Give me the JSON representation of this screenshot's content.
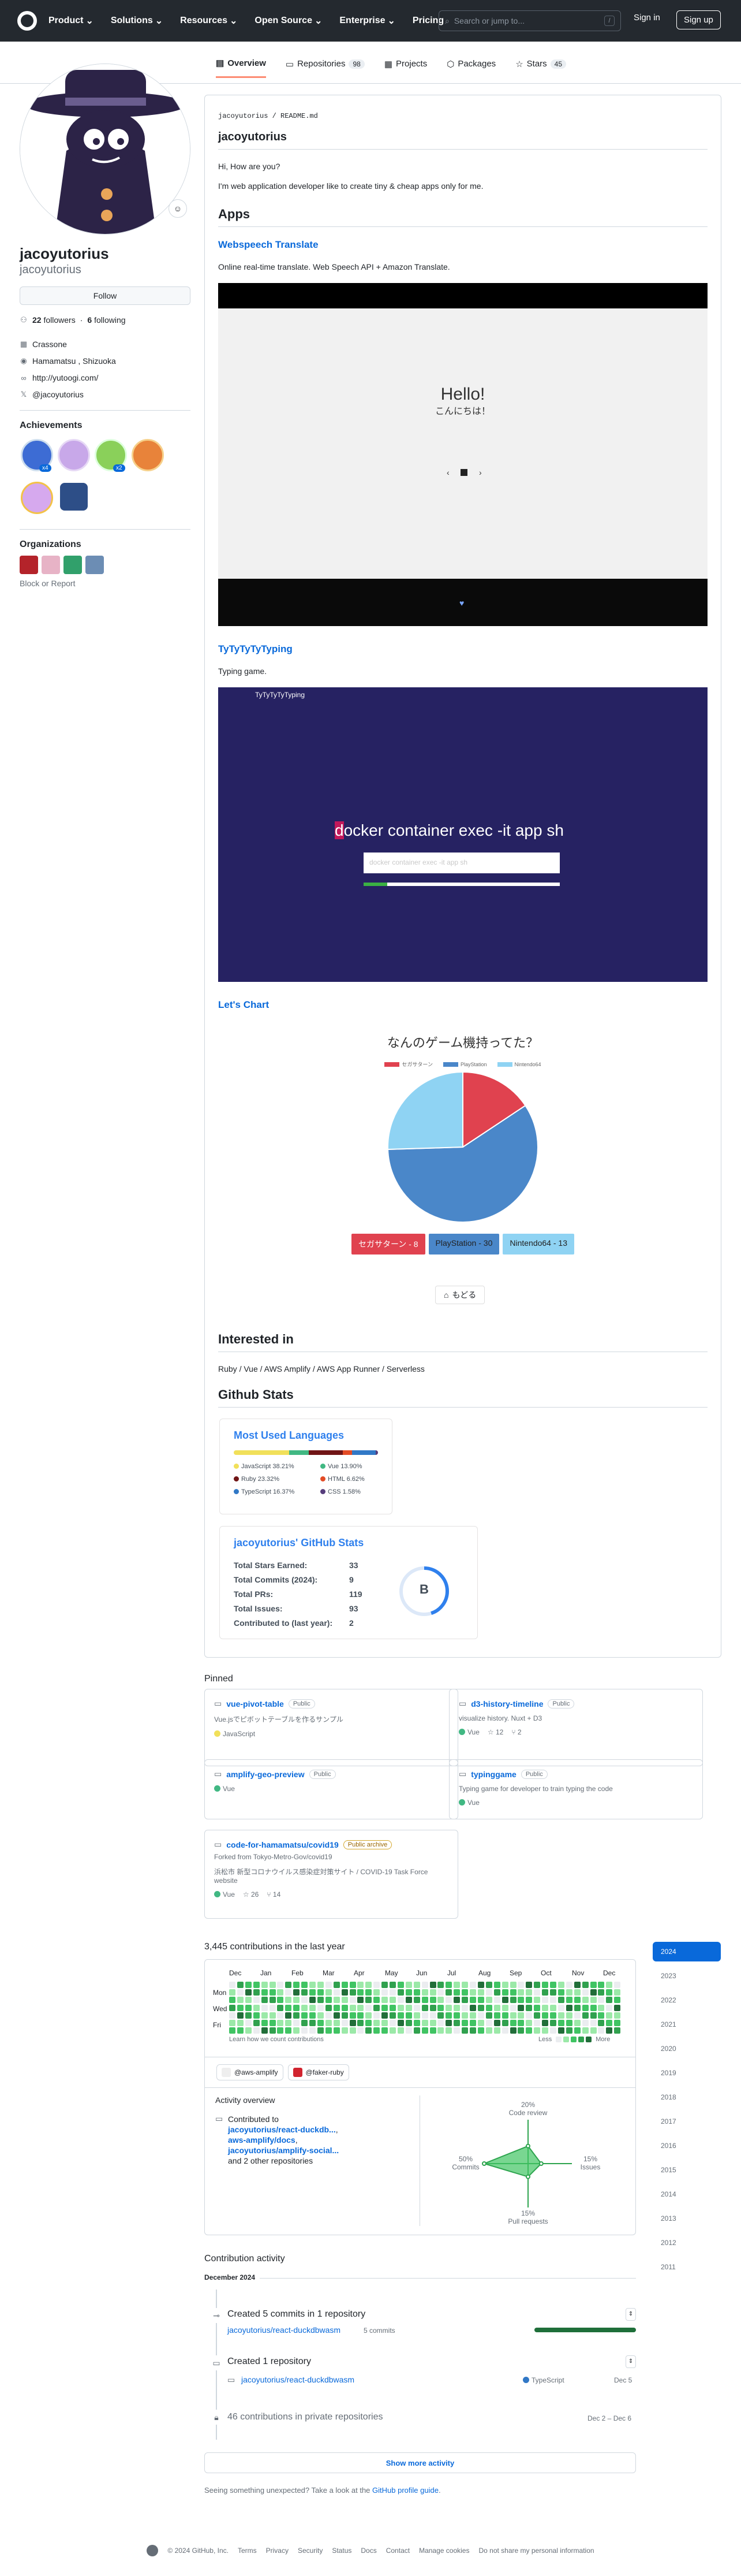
{
  "header": {
    "nav": [
      "Product",
      "Solutions",
      "Resources",
      "Open Source",
      "Enterprise",
      "Pricing"
    ],
    "search_placeholder": "Search or jump to...",
    "search_kbd": "/",
    "sign_in": "Sign in",
    "sign_up": "Sign up"
  },
  "tabs": [
    {
      "label": "Overview",
      "count": ""
    },
    {
      "label": "Repositories",
      "count": "98"
    },
    {
      "label": "Projects",
      "count": ""
    },
    {
      "label": "Packages",
      "count": ""
    },
    {
      "label": "Stars",
      "count": "45"
    }
  ],
  "profile": {
    "name": "jacoyutorius",
    "login": "jacoyutorius",
    "follow_label": "Follow",
    "followers_count": "22",
    "followers_label": "followers",
    "following_count": "6",
    "following_label": "following",
    "company": "Crassone",
    "location": "Hamamatsu , Shizuoka",
    "website": "http://yutoogi.com/",
    "twitter": "@jacoyutorius",
    "achievements_title": "Achievements",
    "badge_x4": "x4",
    "badge_x2": "x2",
    "organizations_title": "Organizations",
    "block_report": "Block or Report"
  },
  "readme": {
    "path": "jacoyutorius / README.md",
    "title": "jacoyutorius",
    "greeting": "Hi, How are you?",
    "intro": "I'm web application developer like to create tiny & cheap apps only for me.",
    "apps_title": "Apps",
    "app1_title": "Webspeech Translate",
    "app1_desc": "Online real-time translate. Web Speech API + Amazon Translate.",
    "app1_hello": "Hello!",
    "app1_hello_ja": "こんにちは！",
    "app2_title": "TyTyTyTyTyping",
    "app2_desc": "Typing game.",
    "app2_logo": "TyTyTyTyTyping",
    "app2_text": "ocker container exec -it app sh",
    "app2_text_cursor": "d",
    "app2_input": "docker container exec -it app sh",
    "app3_title": "Let's Chart",
    "back_label": "もどる",
    "interested_title": "Interested in",
    "interested_text": "Ruby / Vue / AWS Amplify / AWS App Runner / Serverless",
    "stats_title": "Github Stats"
  },
  "chart_data": [
    {
      "type": "pie",
      "title": "なんのゲーム機持ってた？",
      "categories": [
        "セガサターン",
        "PlayStation",
        "Nintendo64"
      ],
      "values": [
        8,
        30,
        13
      ],
      "colors": [
        "#e0424f",
        "#4a87c9",
        "#8fd3f3"
      ],
      "legend_position": "top",
      "buttons": [
        "セガサターン - 8",
        "PlayStation - 30",
        "Nintendo64 - 13"
      ]
    },
    {
      "type": "radar",
      "categories": [
        "Code review",
        "Issues",
        "Pull requests",
        "Commits"
      ],
      "values": [
        20,
        15,
        15,
        50
      ],
      "labels": [
        "20%",
        "15%",
        "15%",
        "50%"
      ]
    }
  ],
  "langs": {
    "title": "Most Used Languages",
    "items": [
      {
        "name": "JavaScript",
        "pct": "38.21%",
        "value": 38.21,
        "color": "#f1e05a"
      },
      {
        "name": "Vue",
        "pct": "13.90%",
        "value": 13.9,
        "color": "#41b883"
      },
      {
        "name": "Ruby",
        "pct": "23.32%",
        "value": 23.32,
        "color": "#701516"
      },
      {
        "name": "HTML",
        "pct": "6.62%",
        "value": 6.62,
        "color": "#e34c26"
      },
      {
        "name": "TypeScript",
        "pct": "16.37%",
        "value": 16.37,
        "color": "#3178c6"
      },
      {
        "name": "CSS",
        "pct": "1.58%",
        "value": 1.58,
        "color": "#563d7c"
      }
    ]
  },
  "stats": {
    "title": "jacoyutorius' GitHub Stats",
    "rows": [
      {
        "label": "Total Stars Earned:",
        "value": "33"
      },
      {
        "label": "Total Commits (2024):",
        "value": "9"
      },
      {
        "label": "Total PRs:",
        "value": "119"
      },
      {
        "label": "Total Issues:",
        "value": "93"
      },
      {
        "label": "Contributed to (last year):",
        "value": "2"
      }
    ],
    "rank": "B",
    "rank_progress": 0.45
  },
  "pinned": {
    "title": "Pinned",
    "items": [
      {
        "name": "vue-pivot-table",
        "visibility": "Public",
        "desc": "Vue.jsでピボットテーブルを作るサンプル",
        "lang": "JavaScript",
        "lang_color": "#f1e05a",
        "stars": "",
        "forks": ""
      },
      {
        "name": "d3-history-timeline",
        "visibility": "Public",
        "desc": "visualize history. Nuxt + D3",
        "lang": "Vue",
        "lang_color": "#41b883",
        "stars": "12",
        "forks": "2"
      },
      {
        "name": "amplify-geo-preview",
        "visibility": "Public",
        "desc": "",
        "lang": "Vue",
        "lang_color": "#41b883",
        "stars": "",
        "forks": ""
      },
      {
        "name": "typinggame",
        "visibility": "Public",
        "desc": "Typing game for developer to train typing the code",
        "lang": "Vue",
        "lang_color": "#41b883",
        "stars": "",
        "forks": ""
      },
      {
        "name": "code-for-hamamatsu/covid19",
        "visibility": "Public archive",
        "forked": "Forked from Tokyo-Metro-Gov/covid19",
        "desc": "浜松市 新型コロナウイルス感染症対策サイト / COVID-19 Task Force website",
        "lang": "Vue",
        "lang_color": "#41b883",
        "stars": "26",
        "forks": "14"
      }
    ]
  },
  "contributions": {
    "heading": "3,445 contributions in the last year",
    "months": [
      "Dec",
      "Jan",
      "Feb",
      "Mar",
      "Apr",
      "May",
      "Jun",
      "Jul",
      "Aug",
      "Sep",
      "Oct",
      "Nov",
      "Dec"
    ],
    "days": [
      "Mon",
      "Wed",
      "Fri"
    ],
    "learn": "Learn how we count contributions",
    "less": "Less",
    "more": "More",
    "years": [
      "2024",
      "2023",
      "2022",
      "2021",
      "2020",
      "2019",
      "2018",
      "2017",
      "2016",
      "2015",
      "2014",
      "2013",
      "2012",
      "2011"
    ]
  },
  "overview": {
    "orgs": [
      "@aws-amplify",
      "@faker-ruby"
    ],
    "title": "Activity overview",
    "contributed_to": "Contributed to",
    "repo1": "jacoyutorius/react-duckdb...",
    "repo2": "aws-amplify/docs",
    "repo3": "jacoyutorius/amplify-social...",
    "and_more": "and 2 other repositories",
    "code_review": "Code review",
    "issues": "Issues",
    "pull_requests": "Pull requests",
    "commits": "Commits"
  },
  "activity": {
    "title": "Contribution activity",
    "month": "December 2024",
    "item1": "Created 5 commits in 1 repository",
    "item1_repo": "jacoyutorius/react-duckdbwasm",
    "item1_count": "5 commits",
    "item2": "Created 1 repository",
    "item2_repo": "jacoyutorius/react-duckdbwasm",
    "item2_lang": "TypeScript",
    "item2_date": "Dec 5",
    "item3": "46 contributions in private repositories",
    "item3_date": "Dec 2 – Dec 6",
    "show_more": "Show more activity",
    "unexpected": "Seeing something unexpected? Take a look at the",
    "guide": "GitHub profile guide",
    "period": "."
  },
  "footer": {
    "copyright": "© 2024 GitHub, Inc.",
    "links": [
      "Terms",
      "Privacy",
      "Security",
      "Status",
      "Docs",
      "Contact",
      "Manage cookies",
      "Do not share my personal information"
    ]
  }
}
